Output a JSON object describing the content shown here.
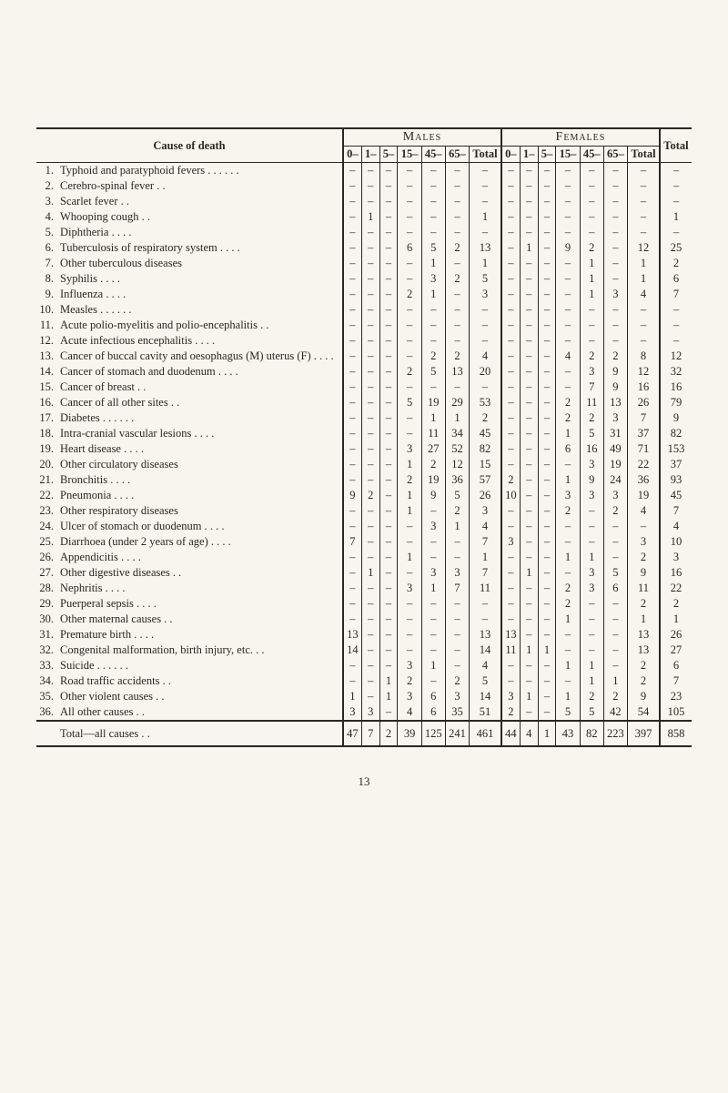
{
  "header": {
    "cause_label": "Cause of death",
    "males_label": "Males",
    "females_label": "Females",
    "total_label": "Total",
    "age_cols": [
      "0–",
      "1–",
      "5–",
      "15–",
      "45–",
      "65–",
      "Total"
    ]
  },
  "rows": [
    {
      "idx": "1.",
      "cause": "Typhoid and paratyphoid fevers . .  . .  . .",
      "m": [
        "–",
        "–",
        "–",
        "–",
        "–",
        "–",
        "–"
      ],
      "f": [
        "–",
        "–",
        "–",
        "–",
        "–",
        "–",
        "–"
      ],
      "t": "–"
    },
    {
      "idx": "2.",
      "cause": "Cerebro-spinal fever  . .",
      "m": [
        "–",
        "–",
        "–",
        "–",
        "–",
        "–",
        "–"
      ],
      "f": [
        "–",
        "–",
        "–",
        "–",
        "–",
        "–",
        "–"
      ],
      "t": "–"
    },
    {
      "idx": "3.",
      "cause": "Scarlet fever  . .",
      "m": [
        "–",
        "–",
        "–",
        "–",
        "–",
        "–",
        "–"
      ],
      "f": [
        "–",
        "–",
        "–",
        "–",
        "–",
        "–",
        "–"
      ],
      "t": "–"
    },
    {
      "idx": "4.",
      "cause": "Whooping cough  . .",
      "m": [
        "–",
        "1",
        "–",
        "–",
        "–",
        "–",
        "1"
      ],
      "f": [
        "–",
        "–",
        "–",
        "–",
        "–",
        "–",
        "–"
      ],
      "t": "1"
    },
    {
      "idx": "5.",
      "cause": "Diphtheria  . .  . .",
      "m": [
        "–",
        "–",
        "–",
        "–",
        "–",
        "–",
        "–"
      ],
      "f": [
        "–",
        "–",
        "–",
        "–",
        "–",
        "–",
        "–"
      ],
      "t": "–"
    },
    {
      "idx": "6.",
      "cause": "Tuberculosis of respiratory system  . .  . .",
      "m": [
        "–",
        "–",
        "–",
        "6",
        "5",
        "2",
        "13"
      ],
      "f": [
        "–",
        "1",
        "–",
        "9",
        "2",
        "–",
        "12"
      ],
      "t": "25"
    },
    {
      "idx": "7.",
      "cause": "Other tuberculous diseases",
      "m": [
        "–",
        "–",
        "–",
        "–",
        "1",
        "–",
        "1"
      ],
      "f": [
        "–",
        "–",
        "–",
        "–",
        "1",
        "–",
        "1"
      ],
      "t": "2"
    },
    {
      "idx": "8.",
      "cause": "Syphilis  . .  . .",
      "m": [
        "–",
        "–",
        "–",
        "–",
        "3",
        "2",
        "5"
      ],
      "f": [
        "–",
        "–",
        "–",
        "–",
        "1",
        "–",
        "1"
      ],
      "t": "6"
    },
    {
      "idx": "9.",
      "cause": "Influenza  . .  . .",
      "m": [
        "–",
        "–",
        "–",
        "2",
        "1",
        "–",
        "3"
      ],
      "f": [
        "–",
        "–",
        "–",
        "–",
        "1",
        "3",
        "4"
      ],
      "t": "7"
    },
    {
      "idx": "10.",
      "cause": "Measles . .  . .  . .",
      "m": [
        "–",
        "–",
        "–",
        "–",
        "–",
        "–",
        "–"
      ],
      "f": [
        "–",
        "–",
        "–",
        "–",
        "–",
        "–",
        "–"
      ],
      "t": "–"
    },
    {
      "idx": "11.",
      "cause": "Acute polio-myelitis and polio-encephalitis  . .",
      "m": [
        "–",
        "–",
        "–",
        "–",
        "–",
        "–",
        "–"
      ],
      "f": [
        "–",
        "–",
        "–",
        "–",
        "–",
        "–",
        "–"
      ],
      "t": "–"
    },
    {
      "idx": "12.",
      "cause": "Acute infectious encephalitis . .  . .",
      "m": [
        "–",
        "–",
        "–",
        "–",
        "–",
        "–",
        "–"
      ],
      "f": [
        "–",
        "–",
        "–",
        "–",
        "–",
        "–",
        "–"
      ],
      "t": "–"
    },
    {
      "idx": "13.",
      "cause": "Cancer of buccal cavity and oesophagus (M) uterus (F)  . .  . .",
      "m": [
        "–",
        "–",
        "–",
        "–",
        "2",
        "2",
        "4"
      ],
      "f": [
        "–",
        "–",
        "–",
        "4",
        "2",
        "2",
        "8"
      ],
      "t": "12"
    },
    {
      "idx": "14.",
      "cause": "Cancer of stomach and duodenum  . .  . .",
      "m": [
        "–",
        "–",
        "–",
        "2",
        "5",
        "13",
        "20"
      ],
      "f": [
        "–",
        "–",
        "–",
        "–",
        "3",
        "9",
        "12"
      ],
      "t": "32"
    },
    {
      "idx": "15.",
      "cause": "Cancer of breast  . .",
      "m": [
        "–",
        "–",
        "–",
        "–",
        "–",
        "–",
        "–"
      ],
      "f": [
        "–",
        "–",
        "–",
        "–",
        "7",
        "9",
        "16"
      ],
      "t": "16"
    },
    {
      "idx": "16.",
      "cause": "Cancer of all other sites . .",
      "m": [
        "–",
        "–",
        "–",
        "5",
        "19",
        "29",
        "53"
      ],
      "f": [
        "–",
        "–",
        "–",
        "2",
        "11",
        "13",
        "26"
      ],
      "t": "79"
    },
    {
      "idx": "17.",
      "cause": "Diabetes . .  . .  . .",
      "m": [
        "–",
        "–",
        "–",
        "–",
        "1",
        "1",
        "2"
      ],
      "f": [
        "–",
        "–",
        "–",
        "2",
        "2",
        "3",
        "7"
      ],
      "t": "9"
    },
    {
      "idx": "18.",
      "cause": "Intra-cranial vascular lesions  . .  . .",
      "m": [
        "–",
        "–",
        "–",
        "–",
        "11",
        "34",
        "45"
      ],
      "f": [
        "–",
        "–",
        "–",
        "1",
        "5",
        "31",
        "37"
      ],
      "t": "82"
    },
    {
      "idx": "19.",
      "cause": "Heart disease . .  . .",
      "m": [
        "–",
        "–",
        "–",
        "3",
        "27",
        "52",
        "82"
      ],
      "f": [
        "–",
        "–",
        "–",
        "6",
        "16",
        "49",
        "71"
      ],
      "t": "153"
    },
    {
      "idx": "20.",
      "cause": "Other circulatory diseases",
      "m": [
        "–",
        "–",
        "–",
        "1",
        "2",
        "12",
        "15"
      ],
      "f": [
        "–",
        "–",
        "–",
        "–",
        "3",
        "19",
        "22"
      ],
      "t": "37"
    },
    {
      "idx": "21.",
      "cause": "Bronchitis  . .  . .",
      "m": [
        "–",
        "–",
        "–",
        "2",
        "19",
        "36",
        "57"
      ],
      "f": [
        "2",
        "–",
        "–",
        "1",
        "9",
        "24",
        "36"
      ],
      "t": "93"
    },
    {
      "idx": "22.",
      "cause": "Pneumonia  . .  . .",
      "m": [
        "9",
        "2",
        "–",
        "1",
        "9",
        "5",
        "26"
      ],
      "f": [
        "10",
        "–",
        "–",
        "3",
        "3",
        "3",
        "19"
      ],
      "t": "45"
    },
    {
      "idx": "23.",
      "cause": "Other respiratory diseases",
      "m": [
        "–",
        "–",
        "–",
        "1",
        "–",
        "2",
        "3"
      ],
      "f": [
        "–",
        "–",
        "–",
        "2",
        "–",
        "2",
        "4"
      ],
      "t": "7"
    },
    {
      "idx": "24.",
      "cause": "Ulcer of stomach or duodenum  . .  . .",
      "m": [
        "–",
        "–",
        "–",
        "–",
        "3",
        "1",
        "4"
      ],
      "f": [
        "–",
        "–",
        "–",
        "–",
        "–",
        "–",
        "–"
      ],
      "t": "4"
    },
    {
      "idx": "25.",
      "cause": "Diarrhoea (under 2 years of age)  . .  . .",
      "m": [
        "7",
        "–",
        "–",
        "–",
        "–",
        "–",
        "7"
      ],
      "f": [
        "3",
        "–",
        "–",
        "–",
        "–",
        "–",
        "3"
      ],
      "t": "10"
    },
    {
      "idx": "26.",
      "cause": "Appendicitis  . .  . .",
      "m": [
        "–",
        "–",
        "–",
        "1",
        "–",
        "–",
        "1"
      ],
      "f": [
        "–",
        "–",
        "–",
        "1",
        "1",
        "–",
        "2"
      ],
      "t": "3"
    },
    {
      "idx": "27.",
      "cause": "Other digestive diseases . .",
      "m": [
        "–",
        "1",
        "–",
        "–",
        "3",
        "3",
        "7"
      ],
      "f": [
        "–",
        "1",
        "–",
        "–",
        "3",
        "5",
        "9"
      ],
      "t": "16"
    },
    {
      "idx": "28.",
      "cause": "Nephritis  . .  . .",
      "m": [
        "–",
        "–",
        "–",
        "3",
        "1",
        "7",
        "11"
      ],
      "f": [
        "–",
        "–",
        "–",
        "2",
        "3",
        "6",
        "11"
      ],
      "t": "22"
    },
    {
      "idx": "29.",
      "cause": "Puerperal sepsis . .  . .",
      "m": [
        "–",
        "–",
        "–",
        "–",
        "–",
        "–",
        "–"
      ],
      "f": [
        "–",
        "–",
        "–",
        "2",
        "–",
        "–",
        "2"
      ],
      "t": "2"
    },
    {
      "idx": "30.",
      "cause": "Other maternal causes . .",
      "m": [
        "–",
        "–",
        "–",
        "–",
        "–",
        "–",
        "–"
      ],
      "f": [
        "–",
        "–",
        "–",
        "1",
        "–",
        "–",
        "1"
      ],
      "t": "1"
    },
    {
      "idx": "31.",
      "cause": "Premature birth . .  . .",
      "m": [
        "13",
        "–",
        "–",
        "–",
        "–",
        "–",
        "13"
      ],
      "f": [
        "13",
        "–",
        "–",
        "–",
        "–",
        "–",
        "13"
      ],
      "t": "26"
    },
    {
      "idx": "32.",
      "cause": "Congenital malformation, birth injury, etc.  . .",
      "m": [
        "14",
        "–",
        "–",
        "–",
        "–",
        "–",
        "14"
      ],
      "f": [
        "11",
        "1",
        "1",
        "–",
        "–",
        "–",
        "13"
      ],
      "t": "27"
    },
    {
      "idx": "33.",
      "cause": "Suicide  . .  . .  . .",
      "m": [
        "–",
        "–",
        "–",
        "3",
        "1",
        "–",
        "4"
      ],
      "f": [
        "–",
        "–",
        "–",
        "1",
        "1",
        "–",
        "2"
      ],
      "t": "6"
    },
    {
      "idx": "34.",
      "cause": "Road traffic accidents . .",
      "m": [
        "–",
        "–",
        "1",
        "2",
        "–",
        "2",
        "5"
      ],
      "f": [
        "–",
        "–",
        "–",
        "–",
        "1",
        "1",
        "2"
      ],
      "t": "7"
    },
    {
      "idx": "35.",
      "cause": "Other violent causes  . .",
      "m": [
        "1",
        "–",
        "1",
        "3",
        "6",
        "3",
        "14"
      ],
      "f": [
        "3",
        "1",
        "–",
        "1",
        "2",
        "2",
        "9"
      ],
      "t": "23"
    },
    {
      "idx": "36.",
      "cause": "All other causes  . .",
      "m": [
        "3",
        "3",
        "–",
        "4",
        "6",
        "35",
        "51"
      ],
      "f": [
        "2",
        "–",
        "–",
        "5",
        "5",
        "42",
        "54"
      ],
      "t": "105"
    }
  ],
  "total_row": {
    "label": "Total—all causes  . .",
    "m": [
      "47",
      "7",
      "2",
      "39",
      "125",
      "241",
      "461"
    ],
    "f": [
      "44",
      "4",
      "1",
      "43",
      "82",
      "223",
      "397"
    ],
    "t": "858"
  },
  "page_number": "13"
}
